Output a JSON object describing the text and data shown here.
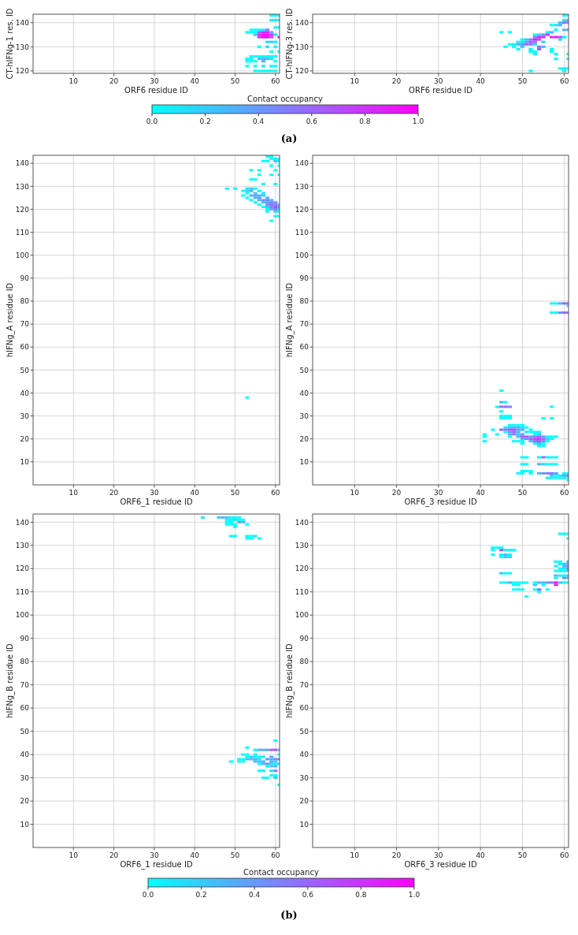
{
  "chart_data": [
    {
      "type": "scatter",
      "marker": "square",
      "grid": true,
      "xlabel": "ORF6 residue ID",
      "ylabel": "CT-hIFNg-1 res. ID",
      "xlim": [
        0,
        61
      ],
      "ylim": [
        119,
        143.5
      ],
      "xticks": [
        10,
        20,
        30,
        40,
        50,
        60
      ],
      "yticks": [
        120,
        130,
        140
      ],
      "clim": [
        0,
        1
      ],
      "clabel": "Contact occupancy",
      "cticks": [
        {
          "value": 0,
          "label": "0.0"
        },
        {
          "value": 0.2,
          "label": "0.2"
        },
        {
          "value": 0.4,
          "label": "0.4"
        },
        {
          "value": 0.6,
          "label": "0.6"
        },
        {
          "value": 0.8,
          "label": "0.8"
        },
        {
          "value": 1,
          "label": "1.0"
        }
      ],
      "annotations": [
        "(a)"
      ],
      "x": [
        59,
        60,
        61,
        59,
        60,
        61,
        60,
        61,
        54,
        55,
        56,
        57,
        58,
        53,
        54,
        55,
        56,
        57,
        58,
        59,
        55,
        56,
        57,
        58,
        59,
        60,
        56,
        57,
        58,
        59,
        61,
        58,
        59,
        60,
        56,
        58,
        60,
        59,
        61,
        54,
        55,
        56,
        57,
        58,
        59,
        60,
        53,
        54,
        56,
        57,
        58,
        59,
        53,
        54,
        55,
        57,
        60,
        53,
        55,
        57,
        59,
        60,
        55,
        56,
        57,
        58,
        59,
        60
      ],
      "values": [
        143,
        143,
        143,
        141,
        141,
        141,
        138,
        138,
        137,
        137,
        137,
        137,
        137,
        136,
        136,
        136,
        136,
        136,
        136,
        136,
        135,
        135,
        135,
        135,
        135,
        135,
        134,
        134,
        134,
        134,
        134,
        132,
        132,
        132,
        130,
        130,
        130,
        128,
        128,
        126,
        126,
        126,
        126,
        126,
        126,
        126,
        125,
        125,
        125,
        125,
        125,
        125,
        124,
        124,
        124,
        124,
        124,
        122,
        122,
        122,
        122,
        122,
        120,
        120,
        120,
        120,
        120,
        120
      ],
      "cvalues": [
        0,
        0,
        0,
        0.1,
        0.1,
        0.1,
        0,
        0,
        0,
        0,
        0,
        0,
        0.5,
        0,
        0,
        0,
        0.6,
        0.9,
        0.9,
        0.3,
        0.2,
        0.9,
        1,
        1,
        0.8,
        0.1,
        0.8,
        1,
        1,
        0.7,
        0.9,
        0.1,
        0.2,
        0,
        0,
        0.1,
        0,
        0,
        0,
        0,
        0,
        0,
        0,
        0,
        0,
        0,
        0,
        0,
        0.2,
        0.3,
        0.2,
        0.1,
        0,
        0,
        0,
        0.3,
        0,
        0,
        0,
        0.1,
        0,
        0,
        0,
        0,
        0,
        0,
        0,
        0
      ]
    },
    {
      "type": "scatter",
      "marker": "square",
      "grid": true,
      "xlabel": "ORF6 residue ID",
      "ylabel": "CT-hIFNg-3 res. ID",
      "xlim": [
        0,
        61
      ],
      "ylim": [
        119,
        143.5
      ],
      "xticks": [
        10,
        20,
        30,
        40,
        50,
        60
      ],
      "yticks": [
        120,
        130,
        140
      ],
      "series": [
        {
          "x": [
            60,
            61
          ],
          "values": [
            143,
            143
          ],
          "colors": [
            "#00ffff",
            "#00ffff"
          ]
        },
        {
          "x": [
            60,
            61
          ],
          "values": [
            141,
            141
          ],
          "colors": [
            "#1ae6ff",
            "#6699ff"
          ]
        },
        {
          "x": [
            59,
            60,
            61
          ],
          "values": [
            140,
            140,
            140
          ],
          "colors": [
            "#33ccff",
            "#9966ff",
            "#8080ff"
          ]
        },
        {
          "x": [
            57,
            58,
            59
          ],
          "values": [
            139,
            139,
            139
          ],
          "colors": [
            "#00ffff",
            "#1ae6ff",
            "#4db3ff"
          ]
        },
        {
          "x": [
            58,
            60,
            61
          ],
          "values": [
            137,
            137,
            137
          ],
          "colors": [
            "#00ffff",
            "#4db3ff",
            "#6699ff"
          ]
        },
        {
          "x": [
            45,
            47,
            56,
            57
          ],
          "values": [
            136,
            136,
            136,
            136
          ],
          "colors": [
            "#00ffff",
            "#00ffff",
            "#00ffff",
            "#4db3ff"
          ]
        },
        {
          "x": [
            53,
            54,
            55,
            56
          ],
          "values": [
            135,
            135,
            135,
            135
          ],
          "colors": [
            "#00ffff",
            "#33ccff",
            "#6699ff",
            "#cc33ff"
          ]
        },
        {
          "x": [
            53,
            54,
            55,
            57,
            58,
            59,
            60
          ],
          "values": [
            134,
            134,
            134,
            134,
            134,
            134,
            134
          ],
          "colors": [
            "#8080ff",
            "#e61aff",
            "#cc33ff",
            "#cc33ff",
            "#e61aff",
            "#b34dff",
            "#00ffff"
          ]
        },
        {
          "x": [
            50,
            51,
            52,
            53,
            54,
            59
          ],
          "values": [
            133,
            133,
            133,
            133,
            133,
            133
          ],
          "colors": [
            "#00ffff",
            "#33ccff",
            "#8080ff",
            "#e61aff",
            "#b34dff",
            "#1ae6ff"
          ]
        },
        {
          "x": [
            49,
            50,
            51,
            52,
            53,
            55
          ],
          "values": [
            132,
            132,
            132,
            132,
            132,
            132
          ],
          "colors": [
            "#00ffff",
            "#1ae6ff",
            "#4db3ff",
            "#b34dff",
            "#9966ff",
            "#33ccff"
          ]
        },
        {
          "x": [
            47,
            48,
            49,
            50,
            51,
            52,
            53
          ],
          "values": [
            131,
            131,
            131,
            131,
            131,
            131,
            131
          ],
          "colors": [
            "#00ffff",
            "#1ae6ff",
            "#4db3ff",
            "#6699ff",
            "#9966ff",
            "#8080ff",
            "#33ccff"
          ]
        },
        {
          "x": [
            46,
            48,
            50,
            54,
            55
          ],
          "values": [
            130,
            130,
            130,
            130,
            130
          ],
          "colors": [
            "#00ffff",
            "#00ffff",
            "#33ccff",
            "#8080ff",
            "#4db3ff"
          ]
        },
        {
          "x": [
            49,
            52,
            54,
            57
          ],
          "values": [
            129,
            129,
            129,
            129
          ],
          "colors": [
            "#00ffff",
            "#1ae6ff",
            "#9966ff",
            "#00ffff"
          ]
        },
        {
          "x": [
            52,
            53,
            57
          ],
          "values": [
            128,
            128,
            128
          ],
          "colors": [
            "#00ffff",
            "#00ffff",
            "#00ffff"
          ]
        },
        {
          "x": [
            53,
            58,
            61
          ],
          "values": [
            127,
            127,
            127
          ],
          "colors": [
            "#00ffff",
            "#00ffff",
            "#00ffff"
          ]
        },
        {
          "x": [
            58,
            61
          ],
          "values": [
            125,
            125
          ],
          "colors": [
            "#00ffff",
            "#00ffff"
          ]
        },
        {
          "x": [
            59,
            60,
            61
          ],
          "values": [
            121,
            121,
            121
          ],
          "colors": [
            "#00ffff",
            "#1ae6ff",
            "#00ffff"
          ]
        },
        {
          "x": [
            52,
            60
          ],
          "values": [
            120,
            120
          ],
          "colors": [
            "#00ffff",
            "#00ffff"
          ]
        }
      ]
    },
    {
      "type": "scatter",
      "marker": "square",
      "grid": true,
      "xlabel": "ORF6_1 residue ID",
      "ylabel": "hIFNg_A residue ID",
      "xlim": [
        0,
        61
      ],
      "ylim": [
        0,
        143.5
      ],
      "xticks": [
        10,
        20,
        30,
        40,
        50,
        60
      ],
      "yticks": [
        10,
        20,
        30,
        40,
        50,
        60,
        70,
        80,
        90,
        100,
        110,
        120,
        130,
        140
      ],
      "series": [
        {
          "x": [
            58,
            59
          ],
          "values": [
            143,
            143
          ],
          "colors": [
            "#00ffff",
            "#00ffff"
          ]
        },
        {
          "x": [
            59,
            60,
            61
          ],
          "values": [
            142,
            142,
            142
          ],
          "colors": [
            "#00ffff",
            "#1ae6ff",
            "#00ffff"
          ]
        },
        {
          "x": [
            57,
            58,
            60,
            61
          ],
          "values": [
            141,
            141,
            141,
            141
          ],
          "colors": [
            "#00ffff",
            "#00ffff",
            "#33ccff",
            "#1ae6ff"
          ]
        },
        {
          "x": [
            59,
            61
          ],
          "values": [
            139,
            139
          ],
          "colors": [
            "#00ffff",
            "#00ffff"
          ]
        },
        {
          "x": [
            54,
            56,
            60
          ],
          "values": [
            137,
            137,
            137
          ],
          "colors": [
            "#00ffff",
            "#00ffff",
            "#00ffff"
          ]
        },
        {
          "x": [
            56,
            59,
            61
          ],
          "values": [
            135,
            135,
            135
          ],
          "colors": [
            "#00ffff",
            "#00ffff",
            "#00ffff"
          ]
        },
        {
          "x": [
            54,
            55
          ],
          "values": [
            133,
            133
          ],
          "colors": [
            "#00ffff",
            "#00ffff"
          ]
        },
        {
          "x": [
            57,
            60
          ],
          "values": [
            131,
            131
          ],
          "colors": [
            "#00ffff",
            "#00ffff"
          ]
        },
        {
          "x": [
            48,
            50,
            53,
            54,
            55
          ],
          "values": [
            129,
            129,
            129,
            129,
            129
          ],
          "colors": [
            "#00ffff",
            "#00ffff",
            "#1ae6ff",
            "#33ccff",
            "#00ffff"
          ]
        },
        {
          "x": [
            52,
            53,
            54,
            56
          ],
          "values": [
            128,
            128,
            128,
            128
          ],
          "colors": [
            "#00ffff",
            "#33ccff",
            "#4db3ff",
            "#00ffff"
          ]
        },
        {
          "x": [
            53,
            55,
            57
          ],
          "values": [
            127,
            127,
            127
          ],
          "colors": [
            "#00ffff",
            "#33ccff",
            "#1ae6ff"
          ]
        },
        {
          "x": [
            52,
            54,
            55,
            56,
            57
          ],
          "values": [
            126,
            126,
            126,
            126,
            126
          ],
          "colors": [
            "#00ffff",
            "#4db3ff",
            "#6699ff",
            "#4db3ff",
            "#33ccff"
          ]
        },
        {
          "x": [
            53,
            55,
            56,
            58
          ],
          "values": [
            125,
            125,
            125,
            125
          ],
          "colors": [
            "#00ffff",
            "#4db3ff",
            "#6699ff",
            "#4db3ff"
          ]
        },
        {
          "x": [
            54,
            56,
            57,
            58,
            59
          ],
          "values": [
            124,
            124,
            124,
            124,
            124
          ],
          "colors": [
            "#00ffff",
            "#4db3ff",
            "#6699ff",
            "#8080ff",
            "#4db3ff"
          ]
        },
        {
          "x": [
            55,
            57,
            58,
            59,
            60
          ],
          "values": [
            123,
            123,
            123,
            123,
            123
          ],
          "colors": [
            "#00ffff",
            "#4db3ff",
            "#6699ff",
            "#8080ff",
            "#6699ff"
          ]
        },
        {
          "x": [
            56,
            58,
            59,
            60,
            61
          ],
          "values": [
            122,
            122,
            122,
            122,
            122
          ],
          "colors": [
            "#00ffff",
            "#6699ff",
            "#9966ff",
            "#8080ff",
            "#4db3ff"
          ]
        },
        {
          "x": [
            57,
            58,
            59,
            60,
            61
          ],
          "values": [
            121,
            121,
            121,
            121,
            121
          ],
          "colors": [
            "#00ffff",
            "#33ccff",
            "#8080ff",
            "#b34dff",
            "#6699ff"
          ]
        },
        {
          "x": [
            58,
            59,
            60,
            61
          ],
          "values": [
            120,
            120,
            120,
            120
          ],
          "colors": [
            "#00ffff",
            "#4db3ff",
            "#8080ff",
            "#33ccff"
          ]
        },
        {
          "x": [
            58,
            60,
            61
          ],
          "values": [
            119,
            119,
            119
          ],
          "colors": [
            "#00ffff",
            "#33ccff",
            "#00ffff"
          ]
        },
        {
          "x": [
            60,
            61
          ],
          "values": [
            117,
            117
          ],
          "colors": [
            "#00ffff",
            "#00ffff"
          ]
        },
        {
          "x": [
            59
          ],
          "values": [
            115
          ],
          "colors": [
            "#00ffff"
          ]
        },
        {
          "x": [
            53
          ],
          "values": [
            38
          ],
          "colors": [
            "#00ffff"
          ]
        }
      ]
    },
    {
      "type": "scatter",
      "marker": "square",
      "grid": true,
      "xlabel": "ORF6_3 residue ID",
      "ylabel": "hIFNg_A residue ID",
      "xlim": [
        0,
        61
      ],
      "ylim": [
        0,
        143.5
      ],
      "xticks": [
        10,
        20,
        30,
        40,
        50,
        60
      ],
      "yticks": [
        10,
        20,
        30,
        40,
        50,
        60,
        70,
        80,
        90,
        100,
        110,
        120,
        130,
        140
      ],
      "series": [
        {
          "x": [
            57,
            58,
            59,
            60,
            61
          ],
          "values": [
            79,
            79,
            79,
            79,
            79
          ],
          "colors": [
            "#00ffff",
            "#00ffff",
            "#4db3ff",
            "#9966ff",
            "#9966ff"
          ]
        },
        {
          "x": [
            61
          ],
          "values": [
            78
          ],
          "colors": [
            "#1ae6ff"
          ]
        },
        {
          "x": [
            57,
            58,
            59,
            60,
            61
          ],
          "values": [
            75,
            75,
            75,
            75,
            75
          ],
          "colors": [
            "#00ffff",
            "#00ffff",
            "#6699ff",
            "#9966ff",
            "#9966ff"
          ]
        },
        {
          "x": [
            45
          ],
          "values": [
            41
          ],
          "colors": [
            "#00ffff"
          ]
        },
        {
          "x": [
            45,
            46
          ],
          "values": [
            36,
            36
          ],
          "colors": [
            "#4db3ff",
            "#00ffff"
          ]
        },
        {
          "x": [
            44,
            45,
            46,
            47,
            57
          ],
          "values": [
            34,
            34,
            34,
            34,
            34
          ],
          "colors": [
            "#00ffff",
            "#9966ff",
            "#9966ff",
            "#8080ff",
            "#00ffff"
          ]
        },
        {
          "x": [
            45
          ],
          "values": [
            32
          ],
          "colors": [
            "#00ffff"
          ]
        },
        {
          "x": [
            45,
            46,
            47
          ],
          "values": [
            30,
            30,
            30
          ],
          "colors": [
            "#00ffff",
            "#00ffff",
            "#00ffff"
          ]
        },
        {
          "x": [
            45,
            46,
            47,
            55,
            57
          ],
          "values": [
            29,
            29,
            29,
            29,
            29
          ],
          "colors": [
            "#00ffff",
            "#00ffff",
            "#00ffff",
            "#00ffff",
            "#00ffff"
          ]
        },
        {
          "x": [
            47,
            48,
            49,
            50
          ],
          "values": [
            26,
            26,
            26,
            26
          ],
          "colors": [
            "#00ffff",
            "#00ffff",
            "#00ffff",
            "#00ffff"
          ]
        },
        {
          "x": [
            46,
            47,
            48,
            49,
            50,
            51
          ],
          "values": [
            25,
            25,
            25,
            25,
            25,
            25
          ],
          "colors": [
            "#00ffff",
            "#33ccff",
            "#4db3ff",
            "#4db3ff",
            "#1ae6ff",
            "#00ffff"
          ]
        },
        {
          "x": [
            43,
            45,
            46,
            47,
            48,
            49,
            50,
            52
          ],
          "values": [
            24,
            24,
            24,
            24,
            24,
            24,
            24,
            24
          ],
          "colors": [
            "#00ffff",
            "#9966ff",
            "#9966ff",
            "#b34dff",
            "#b34dff",
            "#6699ff",
            "#4db3ff",
            "#00ffff"
          ]
        },
        {
          "x": [
            46,
            47,
            48,
            49,
            51,
            52,
            53,
            54
          ],
          "values": [
            23,
            23,
            23,
            23,
            23,
            23,
            23,
            23
          ],
          "colors": [
            "#00ffff",
            "#6699ff",
            "#9966ff",
            "#4db3ff",
            "#1ae6ff",
            "#00ffff",
            "#00ffff",
            "#00ffff"
          ]
        },
        {
          "x": [
            41,
            44,
            47,
            48,
            49,
            50,
            53,
            54
          ],
          "values": [
            22,
            22,
            22,
            22,
            22,
            22,
            22,
            22
          ],
          "colors": [
            "#00ffff",
            "#00ffff",
            "#4db3ff",
            "#8080ff",
            "#33ccff",
            "#4db3ff",
            "#00ffff",
            "#33ccff"
          ]
        },
        {
          "x": [
            41,
            47,
            49,
            50,
            51,
            52,
            53,
            54,
            55,
            56,
            57,
            58
          ],
          "values": [
            21,
            21,
            21,
            21,
            21,
            21,
            21,
            21,
            21,
            21,
            21,
            21
          ],
          "colors": [
            "#00ffff",
            "#00ffff",
            "#4db3ff",
            "#b34dff",
            "#9966ff",
            "#6699ff",
            "#8080ff",
            "#9966ff",
            "#6699ff",
            "#00ffff",
            "#00ffff",
            "#00ffff"
          ]
        },
        {
          "x": [
            50,
            51,
            52,
            53,
            54,
            55,
            56,
            57
          ],
          "values": [
            20,
            20,
            20,
            20,
            20,
            20,
            20,
            20
          ],
          "colors": [
            "#4db3ff",
            "#8080ff",
            "#9966ff",
            "#b34dff",
            "#cc33ff",
            "#9966ff",
            "#33ccff",
            "#00ffff"
          ]
        },
        {
          "x": [
            41,
            48,
            49,
            50,
            52,
            53,
            54,
            55,
            56
          ],
          "values": [
            19,
            19,
            19,
            19,
            19,
            19,
            19,
            19,
            19
          ],
          "colors": [
            "#00ffff",
            "#00ffff",
            "#00ffff",
            "#00ffff",
            "#4db3ff",
            "#9966ff",
            "#b34dff",
            "#8080ff",
            "#00ffff"
          ]
        },
        {
          "x": [
            50,
            53,
            54,
            55
          ],
          "values": [
            18,
            18,
            18,
            18
          ],
          "colors": [
            "#00ffff",
            "#00ffff",
            "#4db3ff",
            "#00ffff"
          ]
        },
        {
          "x": [
            54,
            55
          ],
          "values": [
            17,
            17
          ],
          "colors": [
            "#00ffff",
            "#00ffff"
          ]
        },
        {
          "x": [
            50,
            51,
            54,
            55,
            56,
            57,
            58
          ],
          "values": [
            12,
            12,
            12,
            12,
            12,
            12,
            12
          ],
          "colors": [
            "#00ffff",
            "#00ffff",
            "#00ffff",
            "#9966ff",
            "#00ffff",
            "#00ffff",
            "#00ffff"
          ]
        },
        {
          "x": [
            50,
            51,
            54,
            55,
            56,
            57,
            58
          ],
          "values": [
            9,
            9,
            9,
            9,
            9,
            9,
            9
          ],
          "colors": [
            "#00ffff",
            "#00ffff",
            "#4db3ff",
            "#33ccff",
            "#00ffff",
            "#00ffff",
            "#00ffff"
          ]
        },
        {
          "x": [
            50,
            51,
            52
          ],
          "values": [
            6,
            6,
            6
          ],
          "colors": [
            "#00ffff",
            "#00ffff",
            "#00ffff"
          ]
        },
        {
          "x": [
            49,
            50,
            52,
            54,
            55,
            56,
            57,
            58,
            60,
            61
          ],
          "values": [
            5,
            5,
            5,
            5,
            5,
            5,
            5,
            5,
            5,
            5
          ],
          "colors": [
            "#00ffff",
            "#00ffff",
            "#00ffff",
            "#4db3ff",
            "#6699ff",
            "#8080ff",
            "#9966ff",
            "#6699ff",
            "#00ffff",
            "#00ffff"
          ]
        },
        {
          "x": [
            57,
            58,
            59,
            60,
            61
          ],
          "values": [
            4,
            4,
            4,
            4,
            4
          ],
          "colors": [
            "#33ccff",
            "#00ffff",
            "#1ae6ff",
            "#6699ff",
            "#9966ff"
          ]
        },
        {
          "x": [
            56,
            57,
            58,
            59,
            60,
            61
          ],
          "values": [
            3,
            3,
            3,
            3,
            3,
            3
          ],
          "colors": [
            "#00ffff",
            "#00ffff",
            "#00ffff",
            "#00ffff",
            "#00ffff",
            "#00ffff"
          ]
        },
        {
          "x": [
            61
          ],
          "values": [
            2
          ],
          "colors": [
            "#00ffff"
          ]
        }
      ]
    },
    {
      "type": "scatter",
      "marker": "square",
      "grid": true,
      "xlabel": "ORF6_1 residue ID",
      "ylabel": "hIFNg_B residue ID",
      "xlim": [
        0,
        61
      ],
      "ylim": [
        0,
        143.5
      ],
      "xticks": [
        10,
        20,
        30,
        40,
        50,
        60
      ],
      "yticks": [
        10,
        20,
        30,
        40,
        50,
        60,
        70,
        80,
        90,
        100,
        110,
        120,
        130,
        140
      ],
      "clim": [
        0,
        1
      ],
      "clabel": "Contact occupancy",
      "cticks": [
        {
          "value": 0,
          "label": "0.0"
        },
        {
          "value": 0.2,
          "label": "0.2"
        },
        {
          "value": 0.4,
          "label": "0.4"
        },
        {
          "value": 0.6,
          "label": "0.6"
        },
        {
          "value": 0.8,
          "label": "0.8"
        },
        {
          "value": 1,
          "label": "1.0"
        }
      ],
      "annotations": [
        "(b)"
      ],
      "x": [
        42,
        46,
        47,
        48,
        49,
        50,
        51,
        48,
        49,
        50,
        51,
        52,
        48,
        49,
        51,
        52,
        48,
        49,
        50,
        53,
        50,
        49,
        50,
        53,
        54,
        55,
        53,
        54,
        56,
        60,
        53,
        55,
        56,
        57,
        58,
        59,
        60,
        61,
        52,
        53,
        55,
        61,
        53,
        54,
        55,
        56,
        57,
        59,
        51,
        52,
        53,
        54,
        55,
        56,
        58,
        59,
        60,
        61,
        49,
        51,
        52,
        55,
        56,
        57,
        59,
        60,
        56,
        57,
        58,
        59,
        60,
        61,
        58,
        59,
        60,
        56,
        57,
        59,
        60,
        59,
        60,
        57,
        58,
        60,
        61
      ],
      "values": [
        142,
        142,
        142,
        142,
        142,
        142,
        142,
        141,
        141,
        141,
        141,
        141,
        140,
        140,
        140,
        140,
        139,
        139,
        139,
        139,
        138,
        134,
        134,
        134,
        134,
        134,
        133,
        133,
        133,
        46,
        43,
        42,
        42,
        42,
        42,
        42,
        42,
        42,
        40,
        40,
        40,
        40,
        39,
        39,
        39,
        39,
        39,
        39,
        38,
        38,
        38,
        38,
        38,
        38,
        38,
        38,
        38,
        38,
        37,
        37,
        37,
        37,
        37,
        37,
        37,
        37,
        36,
        36,
        36,
        36,
        36,
        36,
        35,
        35,
        35,
        33,
        33,
        33,
        33,
        31,
        31,
        30,
        30,
        30,
        27
      ],
      "cvalues": [
        0.1,
        0.2,
        0.3,
        0.2,
        0,
        0,
        0,
        0,
        0,
        0.1,
        0,
        0,
        0,
        0,
        0.3,
        0.3,
        0,
        0,
        0,
        0,
        0,
        0,
        0,
        0,
        0,
        0.1,
        0,
        0,
        0,
        0,
        0,
        0,
        0.3,
        0.3,
        0.4,
        0.6,
        0.7,
        0.3,
        0,
        0,
        0,
        0,
        0,
        0.2,
        0,
        0,
        0.1,
        0.3,
        0,
        0,
        0.2,
        0.3,
        0.3,
        0.1,
        0.4,
        0.3,
        0.5,
        0.6,
        0,
        0,
        0,
        0.3,
        0.2,
        0.3,
        0.3,
        0.2,
        0,
        0.3,
        0.4,
        0.2,
        0,
        0.1,
        0,
        0.2,
        0.3,
        0,
        0,
        0.1,
        0.5,
        0,
        0,
        0,
        0,
        0.2,
        0
      ]
    },
    {
      "type": "scatter",
      "marker": "square",
      "grid": true,
      "xlabel": "ORF6_3 residue ID",
      "ylabel": "hIFNg_B residue ID",
      "xlim": [
        0,
        61
      ],
      "ylim": [
        0,
        143.5
      ],
      "xticks": [
        10,
        20,
        30,
        40,
        50,
        60
      ],
      "yticks": [
        10,
        20,
        30,
        40,
        50,
        60,
        70,
        80,
        90,
        100,
        110,
        120,
        130,
        140
      ],
      "series": [
        {
          "x": [
            59,
            60,
            61
          ],
          "values": [
            135,
            135,
            135
          ],
          "colors": [
            "#00ffff",
            "#00ffff",
            "#00ffff"
          ]
        },
        {
          "x": [
            61
          ],
          "values": [
            133
          ],
          "colors": [
            "#00ffff"
          ]
        },
        {
          "x": [
            43,
            44,
            45
          ],
          "values": [
            129,
            129,
            129
          ],
          "colors": [
            "#00ffff",
            "#00ffff",
            "#00ffff"
          ]
        },
        {
          "x": [
            43,
            45,
            46,
            47,
            48
          ],
          "values": [
            128,
            128,
            128,
            128,
            128
          ],
          "colors": [
            "#00ffff",
            "#b34dff",
            "#1ae6ff",
            "#00ffff",
            "#00ffff"
          ]
        },
        {
          "x": [
            43,
            45,
            46,
            47
          ],
          "values": [
            126,
            126,
            126,
            126
          ],
          "colors": [
            "#00ffff",
            "#1ae6ff",
            "#33ccff",
            "#00ffff"
          ]
        },
        {
          "x": [
            45,
            46,
            47
          ],
          "values": [
            125,
            125,
            125
          ],
          "colors": [
            "#00ffff",
            "#33ccff",
            "#1ae6ff"
          ]
        },
        {
          "x": [
            58,
            59,
            61
          ],
          "values": [
            123,
            123,
            123
          ],
          "colors": [
            "#00ffff",
            "#00ffff",
            "#4db3ff"
          ]
        },
        {
          "x": [
            59,
            60,
            61
          ],
          "values": [
            122,
            122,
            122
          ],
          "colors": [
            "#00ffff",
            "#33ccff",
            "#4db3ff"
          ]
        },
        {
          "x": [
            58,
            60,
            61
          ],
          "values": [
            121,
            121,
            121
          ],
          "colors": [
            "#00ffff",
            "#4db3ff",
            "#8080ff"
          ]
        },
        {
          "x": [
            59,
            60,
            61
          ],
          "values": [
            120,
            120,
            120
          ],
          "colors": [
            "#00ffff",
            "#00ffff",
            "#9966ff"
          ]
        },
        {
          "x": [
            58,
            59,
            60,
            61
          ],
          "values": [
            119,
            119,
            119,
            119
          ],
          "colors": [
            "#00ffff",
            "#00ffff",
            "#00ffff",
            "#4db3ff"
          ]
        },
        {
          "x": [
            45,
            46,
            47
          ],
          "values": [
            118,
            118,
            118
          ],
          "colors": [
            "#33ccff",
            "#00ffff",
            "#00ffff"
          ]
        },
        {
          "x": [
            58,
            59,
            60,
            61
          ],
          "values": [
            117,
            117,
            117,
            117
          ],
          "colors": [
            "#4db3ff",
            "#00ffff",
            "#00ffff",
            "#33ccff"
          ]
        },
        {
          "x": [
            58,
            60,
            61
          ],
          "values": [
            116,
            116,
            116
          ],
          "colors": [
            "#00ffff",
            "#6699ff",
            "#4db3ff"
          ]
        },
        {
          "x": [
            45,
            46,
            47,
            48,
            49,
            50,
            51,
            53,
            54,
            55,
            56,
            57,
            58,
            59,
            60,
            61
          ],
          "values": [
            114,
            114,
            114,
            114,
            114,
            114,
            114,
            114,
            114,
            114,
            114,
            114,
            114,
            114,
            114,
            114
          ],
          "colors": [
            "#00ffff",
            "#00ffff",
            "#4db3ff",
            "#00ffff",
            "#00ffff",
            "#00ffff",
            "#00ffff",
            "#00ffff",
            "#4db3ff",
            "#4db3ff",
            "#6699ff",
            "#8080ff",
            "#ff00ff",
            "#33ccff",
            "#00ffff",
            "#00ffff"
          ]
        },
        {
          "x": [
            48,
            49,
            53,
            55,
            58
          ],
          "values": [
            113,
            113,
            113,
            113,
            113
          ],
          "colors": [
            "#00ffff",
            "#00ffff",
            "#33ccff",
            "#00ffff",
            "#cc33ff"
          ]
        },
        {
          "x": [
            48,
            49,
            50,
            53,
            54,
            56
          ],
          "values": [
            111,
            111,
            111,
            111,
            111,
            111
          ],
          "colors": [
            "#00ffff",
            "#1ae6ff",
            "#00ffff",
            "#00ffff",
            "#9966ff",
            "#00ffff"
          ]
        },
        {
          "x": [
            54
          ],
          "values": [
            110
          ],
          "colors": [
            "#00ffff"
          ]
        },
        {
          "x": [
            51
          ],
          "values": [
            108
          ],
          "colors": [
            "#00ffff"
          ]
        }
      ]
    }
  ]
}
